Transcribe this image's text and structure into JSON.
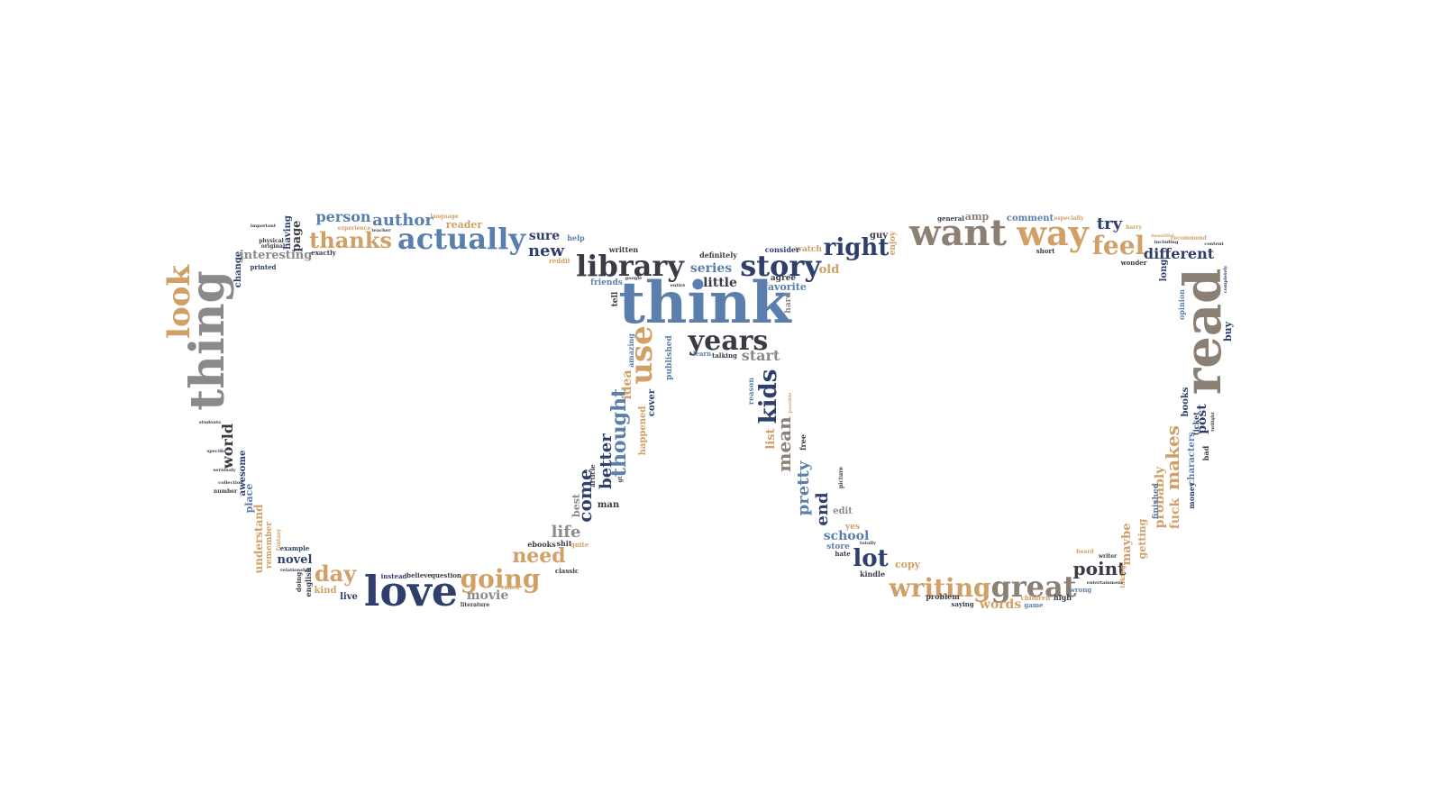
{
  "palette": {
    "navy": "#2e3f6b",
    "blue": "#5b7fad",
    "tan": "#d1a066",
    "taupe": "#8c7f74",
    "grey": "#8a8a8a",
    "dark": "#3b3b46",
    "background": "#ffffff"
  },
  "words": [
    {
      "text": "think",
      "color": "blue"
    },
    {
      "text": "read",
      "color": "taupe"
    },
    {
      "text": "love",
      "color": "navy"
    },
    {
      "text": "thing",
      "color": "grey"
    },
    {
      "text": "want",
      "color": "taupe"
    },
    {
      "text": "way",
      "color": "tan"
    },
    {
      "text": "actually",
      "color": "blue"
    },
    {
      "text": "library",
      "color": "dark"
    },
    {
      "text": "story",
      "color": "navy"
    },
    {
      "text": "years",
      "color": "dark"
    },
    {
      "text": "use",
      "color": "tan"
    },
    {
      "text": "look",
      "color": "tan"
    },
    {
      "text": "great",
      "color": "taupe"
    },
    {
      "text": "writing",
      "color": "tan"
    },
    {
      "text": "going",
      "color": "tan"
    },
    {
      "text": "feel",
      "color": "tan"
    },
    {
      "text": "thanks",
      "color": "tan"
    },
    {
      "text": "right",
      "color": "navy"
    },
    {
      "text": "kids",
      "color": "navy"
    },
    {
      "text": "lot",
      "color": "navy"
    },
    {
      "text": "day",
      "color": "tan"
    },
    {
      "text": "point",
      "color": "dark"
    },
    {
      "text": "need",
      "color": "tan"
    },
    {
      "text": "thought",
      "color": "blue"
    },
    {
      "text": "author",
      "color": "blue"
    },
    {
      "text": "person",
      "color": "blue"
    },
    {
      "text": "makes",
      "color": "tan"
    },
    {
      "text": "different",
      "color": "navy"
    },
    {
      "text": "mean",
      "color": "taupe"
    },
    {
      "text": "come",
      "color": "navy"
    },
    {
      "text": "better",
      "color": "navy"
    },
    {
      "text": "pretty",
      "color": "blue"
    },
    {
      "text": "end",
      "color": "navy"
    },
    {
      "text": "try",
      "color": "navy"
    },
    {
      "text": "new",
      "color": "navy"
    },
    {
      "text": "sure",
      "color": "navy"
    },
    {
      "text": "series",
      "color": "blue"
    },
    {
      "text": "world",
      "color": "dark"
    },
    {
      "text": "movie",
      "color": "grey"
    },
    {
      "text": "life",
      "color": "grey"
    },
    {
      "text": "start",
      "color": "grey"
    },
    {
      "text": "old",
      "color": "tan"
    },
    {
      "text": "probably",
      "color": "tan"
    },
    {
      "text": "post",
      "color": "navy"
    },
    {
      "text": "fuck",
      "color": "tan"
    },
    {
      "text": "maybe",
      "color": "tan"
    },
    {
      "text": "idea",
      "color": "tan"
    },
    {
      "text": "words",
      "color": "tan"
    },
    {
      "text": "school",
      "color": "blue"
    },
    {
      "text": "little",
      "color": "dark"
    },
    {
      "text": "interesting",
      "color": "grey"
    },
    {
      "text": "understand",
      "color": "tan"
    },
    {
      "text": "page",
      "color": "dark"
    },
    {
      "text": "novel",
      "color": "navy"
    },
    {
      "text": "list",
      "color": "tan"
    },
    {
      "text": "favorite",
      "color": "blue"
    },
    {
      "text": "reader",
      "color": "tan"
    },
    {
      "text": "place",
      "color": "blue"
    },
    {
      "text": "buy",
      "color": "navy"
    },
    {
      "text": "characters",
      "color": "blue"
    },
    {
      "text": "getting",
      "color": "tan"
    },
    {
      "text": "copy",
      "color": "tan"
    },
    {
      "text": "comment",
      "color": "blue"
    },
    {
      "text": "amp",
      "color": "taupe"
    },
    {
      "text": "guy",
      "color": "dark"
    },
    {
      "text": "enjoy",
      "color": "tan"
    },
    {
      "text": "watch",
      "color": "tan"
    },
    {
      "text": "agree",
      "color": "dark"
    },
    {
      "text": "hard",
      "color": "grey"
    },
    {
      "text": "friends",
      "color": "blue"
    },
    {
      "text": "written",
      "color": "dark"
    },
    {
      "text": "tell",
      "color": "dark"
    },
    {
      "text": "definitely",
      "color": "dark"
    },
    {
      "text": "consider",
      "color": "navy"
    },
    {
      "text": "cover",
      "color": "navy"
    },
    {
      "text": "happened",
      "color": "tan"
    },
    {
      "text": "published",
      "color": "blue"
    },
    {
      "text": "amazing",
      "color": "blue"
    },
    {
      "text": "learn",
      "color": "blue"
    },
    {
      "text": "talking",
      "color": "dark"
    },
    {
      "text": "reason",
      "color": "blue"
    },
    {
      "text": "free",
      "color": "dark"
    },
    {
      "text": "edit",
      "color": "grey"
    },
    {
      "text": "yes",
      "color": "tan"
    },
    {
      "text": "store",
      "color": "blue"
    },
    {
      "text": "hate",
      "color": "dark"
    },
    {
      "text": "kindle",
      "color": "dark"
    },
    {
      "text": "problem",
      "color": "dark"
    },
    {
      "text": "saying",
      "color": "dark"
    },
    {
      "text": "children",
      "color": "tan"
    },
    {
      "text": "high",
      "color": "dark"
    },
    {
      "text": "game",
      "color": "blue"
    },
    {
      "text": "wrong",
      "color": "blue"
    },
    {
      "text": "finished",
      "color": "blue"
    },
    {
      "text": "bad",
      "color": "dark"
    },
    {
      "text": "long",
      "color": "navy"
    },
    {
      "text": "wonder",
      "color": "dark"
    },
    {
      "text": "short",
      "color": "dark"
    },
    {
      "text": "general",
      "color": "dark"
    },
    {
      "text": "help",
      "color": "blue"
    },
    {
      "text": "reddit",
      "color": "tan"
    },
    {
      "text": "best",
      "color": "grey"
    },
    {
      "text": "man",
      "color": "dark"
    },
    {
      "text": "shit",
      "color": "dark"
    },
    {
      "text": "article",
      "color": "dark"
    },
    {
      "text": "ebooks",
      "color": "dark"
    },
    {
      "text": "quite",
      "color": "tan"
    },
    {
      "text": "classic",
      "color": "dark"
    },
    {
      "text": "question",
      "color": "dark"
    },
    {
      "text": "believe",
      "color": "dark"
    },
    {
      "text": "instead",
      "color": "navy"
    },
    {
      "text": "called",
      "color": "tan"
    },
    {
      "text": "literature",
      "color": "dark"
    },
    {
      "text": "live",
      "color": "navy"
    },
    {
      "text": "kind",
      "color": "tan"
    },
    {
      "text": "english",
      "color": "dark"
    },
    {
      "text": "doing",
      "color": "dark"
    },
    {
      "text": "example",
      "color": "navy"
    },
    {
      "text": "remember",
      "color": "tan"
    },
    {
      "text": "awesome",
      "color": "navy"
    },
    {
      "text": "number",
      "color": "dark"
    },
    {
      "text": "change",
      "color": "navy"
    },
    {
      "text": "printed",
      "color": "navy"
    },
    {
      "text": "exactly",
      "color": "dark"
    },
    {
      "text": "original",
      "color": "dark"
    },
    {
      "text": "physical",
      "color": "dark"
    },
    {
      "text": "important",
      "color": "dark"
    },
    {
      "text": "experience",
      "color": "tan"
    },
    {
      "text": "teacher",
      "color": "dark"
    },
    {
      "text": "language",
      "color": "tan"
    },
    {
      "text": "having",
      "color": "navy"
    },
    {
      "text": "harry",
      "color": "tan"
    },
    {
      "text": "beautiful",
      "color": "tan"
    },
    {
      "text": "including",
      "color": "dark"
    },
    {
      "text": "recommend",
      "color": "tan"
    },
    {
      "text": "content",
      "color": "dark"
    },
    {
      "text": "opinion",
      "color": "blue"
    },
    {
      "text": "writer",
      "color": "dark"
    },
    {
      "text": "taking",
      "color": "tan"
    },
    {
      "text": "money",
      "color": "navy"
    },
    {
      "text": "completely",
      "color": "navy"
    },
    {
      "text": "twilight",
      "color": "dark"
    },
    {
      "text": "especially",
      "color": "tan"
    },
    {
      "text": "students",
      "color": "dark"
    },
    {
      "text": "specific",
      "color": "dark"
    },
    {
      "text": "seriously",
      "color": "dark"
    },
    {
      "text": "collection",
      "color": "dark"
    },
    {
      "text": "fantasy",
      "color": "tan"
    },
    {
      "text": "relationship",
      "color": "dark"
    },
    {
      "text": "google",
      "color": "dark"
    },
    {
      "text": "entire",
      "color": "dark"
    },
    {
      "text": "possible",
      "color": "tan"
    },
    {
      "text": "heard",
      "color": "tan"
    },
    {
      "text": "picture",
      "color": "dark"
    },
    {
      "text": "totally",
      "color": "dark"
    },
    {
      "text": "entertainment",
      "color": "dark"
    },
    {
      "text": "gt",
      "color": "dark"
    },
    {
      "text": "books",
      "color": "navy"
    },
    {
      "text": "ticket",
      "color": "navy"
    }
  ]
}
